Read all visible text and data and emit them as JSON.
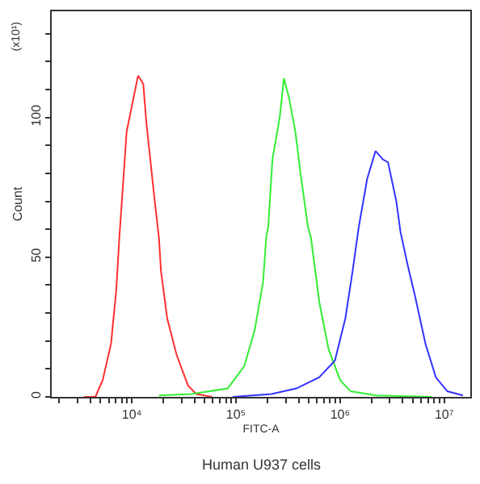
{
  "chart_data": {
    "type": "line",
    "xlabel": "FITC-A",
    "ylabel": "Count",
    "log": "x",
    "grid": false,
    "marker": "none",
    "line_style": "solid",
    "annotations": [
      "(x10¹)",
      "Human U937 cells"
    ],
    "xlim": [
      1700,
      17800000
    ],
    "ylim": [
      0,
      138
    ],
    "xticks": [
      {
        "value": 2000,
        "label": null
      },
      {
        "value": 3000,
        "label": null
      },
      {
        "value": 4000,
        "label": null
      },
      {
        "value": 5000,
        "label": null
      },
      {
        "value": 6000,
        "label": null
      },
      {
        "value": 7000,
        "label": null
      },
      {
        "value": 8000,
        "label": null
      },
      {
        "value": 9000,
        "label": null
      },
      {
        "value": 10000,
        "label": "10⁴"
      },
      {
        "value": 20000,
        "label": null
      },
      {
        "value": 30000,
        "label": null
      },
      {
        "value": 40000,
        "label": null
      },
      {
        "value": 50000,
        "label": null
      },
      {
        "value": 60000,
        "label": null
      },
      {
        "value": 70000,
        "label": null
      },
      {
        "value": 80000,
        "label": null
      },
      {
        "value": 90000,
        "label": null
      },
      {
        "value": 100000,
        "label": "10⁵"
      },
      {
        "value": 200000,
        "label": null
      },
      {
        "value": 300000,
        "label": null
      },
      {
        "value": 400000,
        "label": null
      },
      {
        "value": 500000,
        "label": null
      },
      {
        "value": 600000,
        "label": null
      },
      {
        "value": 700000,
        "label": null
      },
      {
        "value": 800000,
        "label": null
      },
      {
        "value": 900000,
        "label": null
      },
      {
        "value": 1000000,
        "label": "10⁶"
      },
      {
        "value": 2000000,
        "label": null
      },
      {
        "value": 3000000,
        "label": null
      },
      {
        "value": 4000000,
        "label": null
      },
      {
        "value": 5000000,
        "label": null
      },
      {
        "value": 6000000,
        "label": null
      },
      {
        "value": 7000000,
        "label": null
      },
      {
        "value": 8000000,
        "label": null
      },
      {
        "value": 9000000,
        "label": null
      },
      {
        "value": 10000000,
        "label": "10⁷"
      }
    ],
    "yticks": [
      0,
      {
        "value": 10,
        "label": null
      },
      {
        "value": 20,
        "label": null
      },
      {
        "value": 30,
        "label": null
      },
      {
        "value": 40,
        "label": null
      },
      50,
      {
        "value": 60,
        "label": null
      },
      {
        "value": 70,
        "label": null
      },
      {
        "value": 80,
        "label": null
      },
      {
        "value": 90,
        "label": null
      },
      100,
      {
        "value": 110,
        "label": null
      },
      {
        "value": 120,
        "label": null
      },
      {
        "value": 130,
        "label": null
      }
    ],
    "series": [
      {
        "color": "#ff3030",
        "x": [
          3467,
          4467,
          5248,
          6310,
          7079,
          7586,
          8913,
          10000,
          11480,
          12880,
          13800,
          16600,
          18200,
          19050,
          21880,
          26920,
          34670,
          41690,
          58880
        ],
        "values": [
          0,
          0,
          6,
          19,
          38,
          57,
          95,
          104,
          115,
          112,
          98,
          70,
          57,
          45,
          28,
          15,
          4,
          1,
          0
        ]
      },
      {
        "color": "#33ee33",
        "x": [
          18200,
          37150,
          83180,
          120200,
          151400,
          182000,
          195000,
          204200,
          223900,
          263000,
          288400,
          323600,
          371500,
          416900,
          489800,
          524800,
          631000,
          776200,
          1000000,
          1259000,
          2239000,
          7586000
        ],
        "values": [
          0.5,
          1,
          3,
          11,
          24,
          41,
          57,
          61,
          85,
          100,
          114,
          107,
          95,
          80,
          61,
          57,
          34,
          17,
          6,
          2,
          0.5,
          0
        ]
      },
      {
        "color": "#3333ff",
        "x": [
          93330,
          218800,
          380200,
          631000,
          891300,
          1122000,
          1318000,
          1514000,
          1820000,
          2188000,
          2570000,
          2884000,
          3467000,
          3802000,
          4467000,
          5248000,
          6607000,
          8318000,
          10720000,
          15140000
        ],
        "values": [
          0,
          1,
          3,
          7,
          13,
          28,
          45,
          61,
          78,
          88,
          85,
          84,
          70,
          59,
          47,
          36,
          19,
          7,
          2,
          0.5
        ]
      }
    ]
  }
}
